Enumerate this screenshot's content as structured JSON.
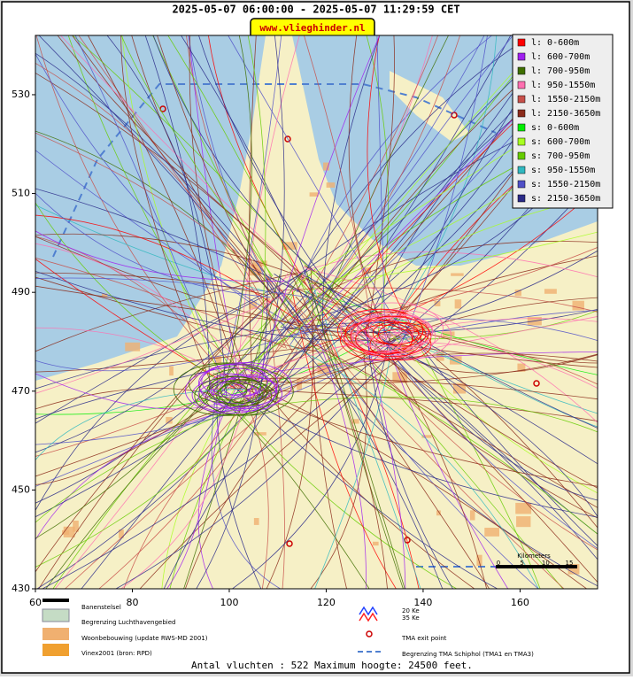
{
  "header": {
    "title": "2025-05-07 06:00:00 - 2025-05-07 11:29:59 CET",
    "site": "www.vlieghinder.nl"
  },
  "map": {
    "xlim": [
      60,
      176
    ],
    "ylim": [
      430,
      542
    ],
    "xticks": [
      60,
      80,
      100,
      120,
      140,
      160
    ],
    "yticks": [
      430,
      450,
      470,
      490,
      510,
      530
    ]
  },
  "legend": [
    {
      "label": "l: 0-600m",
      "color": "#ff0000"
    },
    {
      "label": "l: 600-700m",
      "color": "#a020f0"
    },
    {
      "label": "l: 700-950m",
      "color": "#3f6f00"
    },
    {
      "label": "l: 950-1550m",
      "color": "#ff6fb0"
    },
    {
      "label": "l: 1550-2150m",
      "color": "#c8504a"
    },
    {
      "label": "l: 2150-3650m",
      "color": "#8b2a1a"
    },
    {
      "label": "s: 0-600m",
      "color": "#00ee00"
    },
    {
      "label": "s: 600-700m",
      "color": "#a8ff20"
    },
    {
      "label": "s: 700-950m",
      "color": "#66cc00"
    },
    {
      "label": "s: 950-1550m",
      "color": "#30b8c0"
    },
    {
      "label": "s: 1550-2150m",
      "color": "#5050c8"
    },
    {
      "label": "s: 2150-3650m",
      "color": "#2a2a88"
    }
  ],
  "key": {
    "runways": "Banenstelsel",
    "airport": "Begrenzing Luchthavengebied",
    "housing": "Woonbebouwing (update RWS-MD 2001)",
    "vinex": "Vinex2001 (bron: RPD)",
    "ke20": "20 Ke",
    "ke35": "35 Ke",
    "exit": "TMA exit point",
    "tma": "Begrenzing TMA Schiphol  (TMA1 en TMA3)"
  },
  "scale": {
    "title": "Kilometers",
    "ticks": [
      0,
      5,
      10,
      15
    ]
  },
  "footer": "Antal vluchten : 522 Maximum hoogte: 24500 feet."
}
